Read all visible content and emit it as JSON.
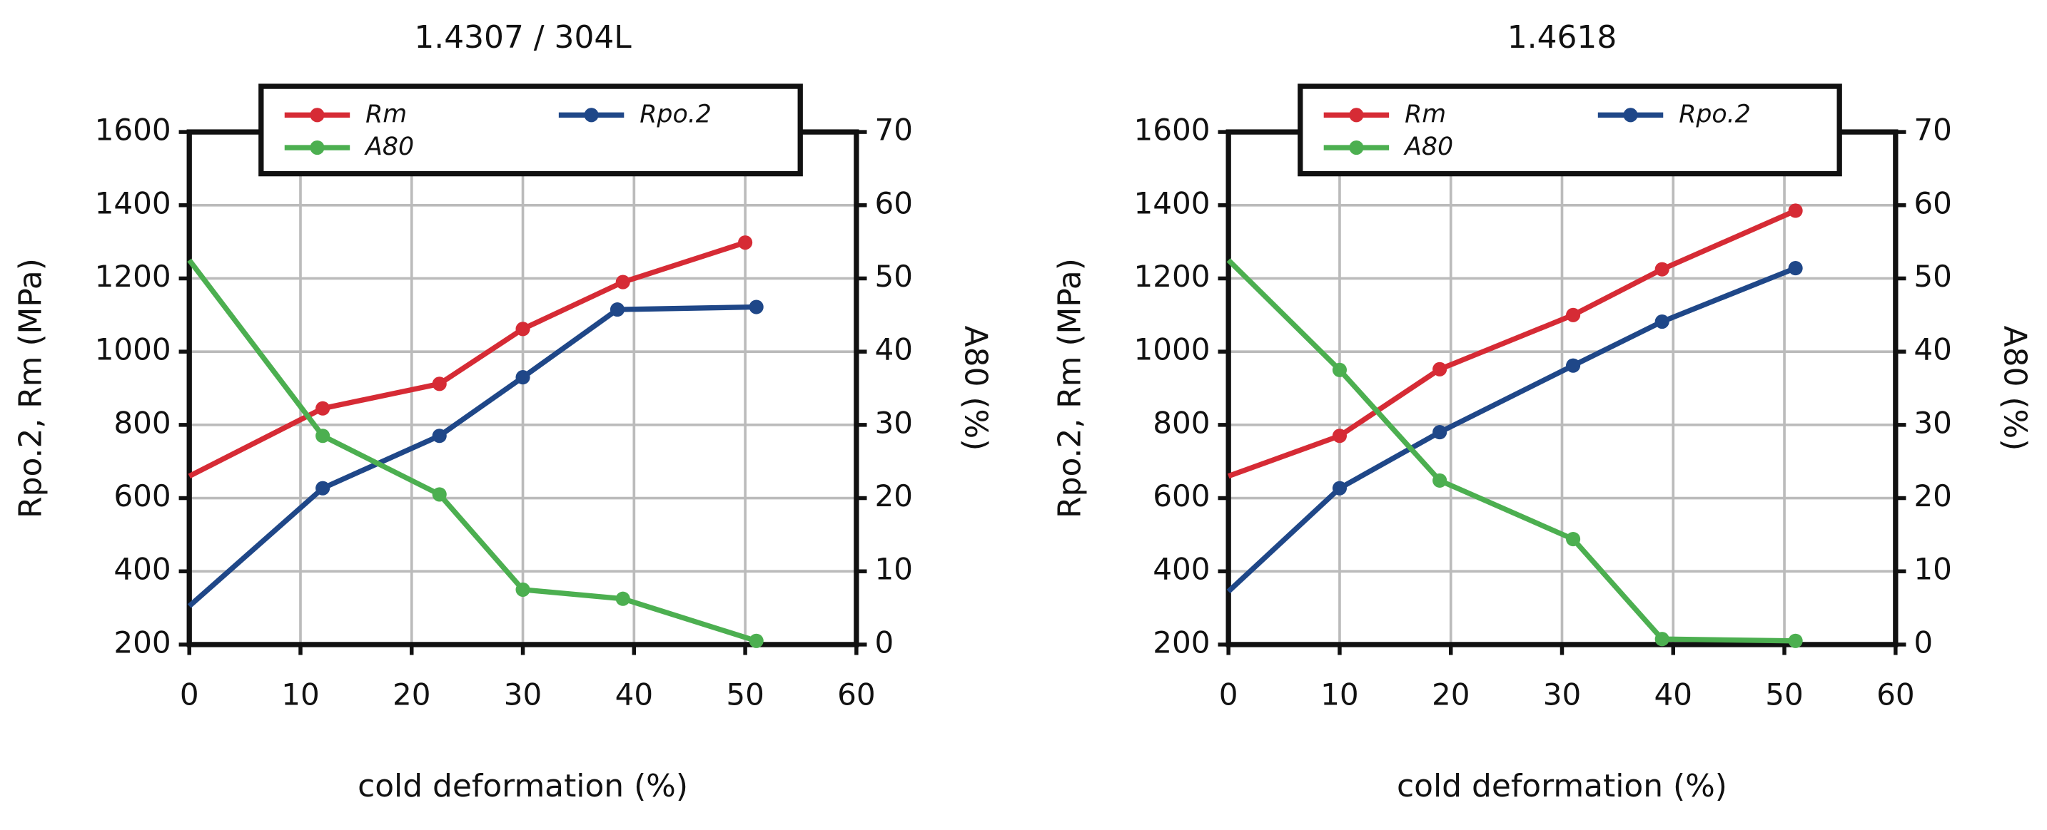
{
  "chart_data": [
    {
      "type": "line",
      "title": "1.4307 / 304L",
      "xlabel": "cold deformation (%)",
      "ylabel": "Rpo.2, Rm (MPa)",
      "y2label": "A80 (%)",
      "xlim": [
        0,
        60
      ],
      "xticks": [
        0,
        10,
        20,
        30,
        40,
        50,
        60
      ],
      "ylim": [
        200,
        1600
      ],
      "yticks": [
        200,
        400,
        600,
        800,
        1000,
        1200,
        1400,
        1600
      ],
      "y2lim": [
        0,
        70
      ],
      "y2ticks": [
        0,
        10,
        20,
        30,
        40,
        50,
        60,
        70
      ],
      "grid": true,
      "legend": "top",
      "series": [
        {
          "name": "Rm",
          "color": "#d62b35",
          "x": [
            0,
            12,
            22.5,
            30,
            39,
            50
          ],
          "values": [
            660,
            845,
            912,
            1062,
            1190,
            1298
          ]
        },
        {
          "name": "Rpo.2",
          "color": "#1f4788",
          "x": [
            0,
            12,
            22.5,
            30,
            38.5,
            51
          ],
          "values": [
            305,
            627,
            770,
            930,
            1115,
            1122
          ]
        },
        {
          "name": "A80",
          "color": "#4caf50",
          "axis": "y2",
          "x": [
            0,
            12,
            22.5,
            30,
            39,
            51
          ],
          "values": [
            52.5,
            28.5,
            20.5,
            7.5,
            6.25,
            0.5
          ]
        }
      ]
    },
    {
      "type": "line",
      "title": "1.4618",
      "xlabel": "cold deformation (%)",
      "ylabel": "Rpo.2, Rm (MPa)",
      "y2label": "A80 (%)",
      "xlim": [
        0,
        60
      ],
      "xticks": [
        0,
        10,
        20,
        30,
        40,
        50,
        60
      ],
      "ylim": [
        200,
        1600
      ],
      "yticks": [
        200,
        400,
        600,
        800,
        1000,
        1200,
        1400,
        1600
      ],
      "y2lim": [
        0,
        70
      ],
      "y2ticks": [
        0,
        10,
        20,
        30,
        40,
        50,
        60,
        70
      ],
      "grid": true,
      "legend": "top",
      "series": [
        {
          "name": "Rm",
          "color": "#d62b35",
          "x": [
            0,
            10,
            19,
            31,
            39,
            51
          ],
          "values": [
            660,
            770,
            952,
            1100,
            1225,
            1385
          ]
        },
        {
          "name": "Rpo.2",
          "color": "#1f4788",
          "x": [
            0,
            10,
            19,
            31,
            39,
            51
          ],
          "values": [
            345,
            627,
            780,
            962,
            1082,
            1228
          ]
        },
        {
          "name": "A80",
          "color": "#4caf50",
          "axis": "y2",
          "x": [
            0,
            10,
            19,
            31,
            39,
            51
          ],
          "values": [
            52.5,
            37.5,
            22.4,
            14.4,
            0.75,
            0.5
          ]
        }
      ]
    }
  ]
}
